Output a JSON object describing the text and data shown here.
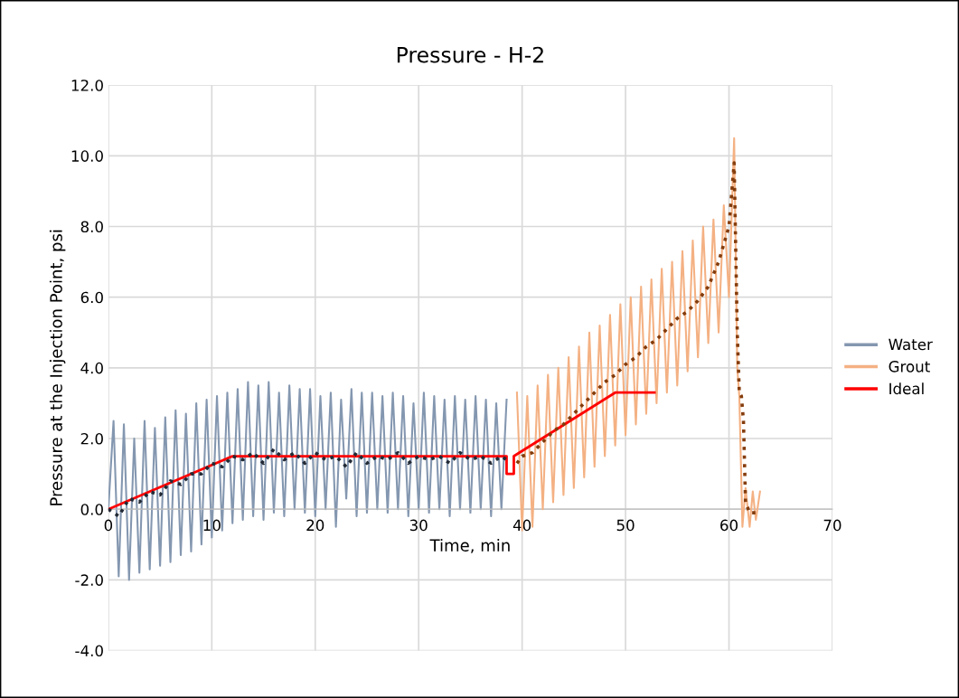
{
  "chart_data": {
    "type": "line",
    "title": "Pressure - H-2",
    "xlabel": "Time, min",
    "ylabel": "Pressure at the Injection Point, psi",
    "xlim": [
      0,
      70
    ],
    "xticks": [
      0,
      10,
      20,
      30,
      40,
      50,
      60,
      70
    ],
    "ylim": [
      -4,
      12
    ],
    "yticks": [
      {
        "value": -4,
        "label": "-4.0"
      },
      {
        "value": -2,
        "label": "-2.0"
      },
      {
        "value": 0,
        "label": "0.0"
      },
      {
        "value": 2,
        "label": "2.0"
      },
      {
        "value": 4,
        "label": "4.0"
      },
      {
        "value": 6,
        "label": "6.0"
      },
      {
        "value": 8,
        "label": "8.0"
      },
      {
        "value": 10,
        "label": "10.0"
      },
      {
        "value": 12,
        "label": "12.0"
      }
    ],
    "grid": true,
    "legend": "right",
    "marker": "none",
    "series": [
      {
        "name": "Water",
        "color": "#8497b0",
        "line_style": "solid",
        "x": [
          0,
          0.5,
          1,
          1.5,
          2,
          2.5,
          3,
          3.5,
          4,
          4.5,
          5,
          5.5,
          6,
          6.5,
          7,
          7.5,
          8,
          8.5,
          9,
          9.5,
          10,
          10.5,
          11,
          11.5,
          12,
          12.5,
          13,
          13.5,
          14,
          14.5,
          15,
          15.5,
          16,
          16.5,
          17,
          17.5,
          18,
          18.5,
          19,
          19.5,
          20,
          20.5,
          21,
          21.5,
          22,
          22.5,
          23,
          23.5,
          24,
          24.5,
          25,
          25.5,
          26,
          26.5,
          27,
          27.5,
          28,
          28.5,
          29,
          29.5,
          30,
          30.5,
          31,
          31.5,
          32,
          32.5,
          33,
          33.5,
          34,
          34.5,
          35,
          35.5,
          36,
          36.5,
          37,
          37.5,
          38,
          38.5
        ],
        "values": [
          0,
          2.5,
          -1.9,
          2.4,
          -2.0,
          2.0,
          -1.8,
          2.5,
          -1.7,
          2.3,
          -1.6,
          2.6,
          -1.5,
          2.8,
          -1.3,
          2.7,
          -1.2,
          3.0,
          -1.0,
          3.1,
          -0.8,
          3.2,
          -0.6,
          3.3,
          -0.4,
          3.4,
          -0.3,
          3.6,
          -0.2,
          3.5,
          -0.3,
          3.6,
          -0.1,
          3.3,
          -0.2,
          3.5,
          0.0,
          3.4,
          -0.1,
          3.4,
          -0.2,
          3.2,
          0.0,
          3.3,
          -0.5,
          3.1,
          0.3,
          3.4,
          -0.2,
          3.3,
          -0.1,
          3.3,
          0.0,
          3.2,
          -0.1,
          3.3,
          0.0,
          3.2,
          -0.2,
          3.0,
          0.0,
          3.3,
          -0.1,
          3.2,
          0.0,
          3.1,
          -0.2,
          3.2,
          0.0,
          3.1,
          -0.1,
          3.2,
          0.0,
          3.1,
          -0.2,
          3.0,
          0.0,
          3.1
        ]
      },
      {
        "name": "Grout",
        "color": "#f4b183",
        "line_style": "solid",
        "x": [
          39.5,
          40,
          40.5,
          41,
          41.5,
          42,
          42.5,
          43,
          43.5,
          44,
          44.5,
          45,
          45.5,
          46,
          46.5,
          47,
          47.5,
          48,
          48.5,
          49,
          49.5,
          50,
          50.5,
          51,
          51.5,
          52,
          52.5,
          53,
          53.5,
          54,
          54.5,
          55,
          55.5,
          56,
          56.5,
          57,
          57.5,
          58,
          58.5,
          59,
          59.5,
          60,
          60.5,
          60.8,
          61,
          61.3,
          61.6,
          62,
          62.3,
          62.6,
          63
        ],
        "values": [
          3.3,
          -0.6,
          3.2,
          -0.5,
          3.5,
          0.0,
          3.8,
          0.2,
          4.0,
          0.4,
          4.3,
          0.6,
          4.6,
          0.9,
          5.0,
          1.2,
          5.2,
          1.5,
          5.5,
          1.8,
          5.8,
          2.1,
          6.0,
          2.4,
          6.3,
          2.7,
          6.5,
          3.0,
          6.8,
          3.3,
          7.0,
          3.5,
          7.3,
          3.9,
          7.6,
          4.3,
          8.0,
          4.7,
          8.2,
          5.0,
          8.6,
          6.0,
          10.5,
          4.0,
          3.2,
          -0.5,
          0.6,
          -0.5,
          0.5,
          -0.3,
          0.5
        ]
      },
      {
        "name": "Ideal",
        "color": "#ff0000",
        "line_style": "solid",
        "x": [
          0,
          12,
          38.5,
          38.5,
          39.2,
          39.2,
          49,
          52.8
        ],
        "values": [
          0,
          1.5,
          1.5,
          1.0,
          1.0,
          1.5,
          3.3,
          3.3
        ]
      },
      {
        "color": "#222a35",
        "line_style": "dotted",
        "x": [
          0,
          1,
          2,
          3,
          4,
          5,
          6,
          7,
          8,
          9,
          10,
          11,
          12,
          13,
          14,
          15,
          16,
          17,
          18,
          19,
          20,
          21,
          22,
          23,
          24,
          25,
          26,
          27,
          28,
          29,
          30,
          31,
          32,
          33,
          34,
          35,
          36,
          37,
          38,
          38.5
        ],
        "values": [
          0,
          -0.2,
          0.3,
          0.2,
          0.5,
          0.4,
          0.8,
          0.7,
          1.0,
          1.0,
          1.3,
          1.2,
          1.5,
          1.4,
          1.6,
          1.3,
          1.7,
          1.4,
          1.6,
          1.3,
          1.6,
          1.4,
          1.5,
          1.2,
          1.6,
          1.3,
          1.5,
          1.4,
          1.6,
          1.3,
          1.5,
          1.4,
          1.5,
          1.3,
          1.6,
          1.4,
          1.5,
          1.3,
          1.5,
          1.4
        ]
      },
      {
        "color": "#843c0c",
        "line_style": "dotted",
        "x": [
          39.5,
          40,
          41,
          42,
          43,
          44,
          45,
          46,
          47,
          48,
          49,
          50,
          51,
          52,
          53,
          54,
          55,
          56,
          57,
          58,
          59,
          60,
          60.5,
          60.8,
          61,
          61.2,
          61.4,
          61.6,
          62,
          62.5,
          63
        ],
        "values": [
          1.3,
          1.5,
          1.6,
          1.9,
          2.2,
          2.4,
          2.7,
          3.0,
          3.3,
          3.6,
          3.8,
          4.1,
          4.3,
          4.6,
          4.8,
          5.1,
          5.4,
          5.6,
          5.9,
          6.3,
          7.0,
          8.0,
          9.8,
          5.0,
          3.3,
          3.2,
          2.5,
          0.2,
          -0.1,
          -0.1,
          -0.1
        ]
      }
    ]
  }
}
